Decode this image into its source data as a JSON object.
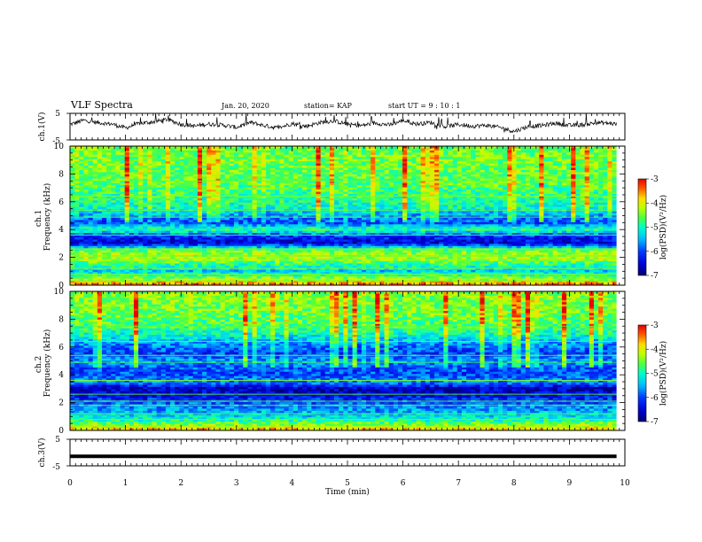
{
  "header": {
    "title": "VLF Spectra",
    "date": "Jan. 20, 2020",
    "station": "station= KAP",
    "start": "start  UT =   9 : 10 : 1"
  },
  "chart_data": [
    {
      "type": "line",
      "panel": "ch1-voltage",
      "ylabel": "ch.1(V)",
      "ylim": [
        -5,
        5
      ],
      "yticks": [
        "5",
        "-5"
      ],
      "x_unit": "min",
      "xlim": [
        0,
        10
      ],
      "data_end_min": 9.85,
      "series": [
        {
          "x": [
            0,
            0.25,
            0.5,
            0.75,
            1.0,
            1.25,
            1.5,
            1.75,
            2.0,
            2.25,
            2.5,
            2.75,
            3.0,
            3.25,
            3.5,
            3.75,
            4.0,
            4.25,
            4.5,
            4.75,
            5.0,
            5.25,
            5.5,
            5.75,
            6.0,
            6.25,
            6.5,
            6.75,
            7.0,
            7.25,
            7.5,
            7.75,
            8.0,
            8.25,
            8.5,
            8.75,
            9.0,
            9.25,
            9.5,
            9.75,
            9.85
          ],
          "y": [
            0.8,
            2.4,
            1.5,
            1.0,
            -0.5,
            1.2,
            1.8,
            2.7,
            0.9,
            0.2,
            1.0,
            0.6,
            -0.3,
            1.6,
            0.4,
            -0.5,
            1.2,
            0.1,
            1.5,
            2.2,
            0.9,
            0.4,
            1.4,
            0.6,
            2.3,
            1.0,
            1.6,
            0.0,
            0.8,
            0.2,
            0.5,
            -0.3,
            -1.8,
            0.0,
            0.4,
            1.3,
            0.4,
            0.7,
            1.5,
            1.2,
            0.9
          ]
        }
      ]
    },
    {
      "type": "heatmap",
      "panel": "ch1-spectrogram",
      "ylabel": "ch.1\nFrequency (kHz)",
      "ylim": [
        0,
        10
      ],
      "yticks": [
        "0",
        "2",
        "4",
        "6",
        "8",
        "10"
      ],
      "xlim": [
        0,
        10
      ],
      "data_end_min": 9.85,
      "frequency_band_levels_kHz": [
        [
          0.0,
          -3.4
        ],
        [
          0.5,
          -4.4
        ],
        [
          1.0,
          -5.4
        ],
        [
          1.5,
          -4.8
        ],
        [
          2.0,
          -4.2
        ],
        [
          2.5,
          -4.5
        ],
        [
          3.0,
          -6.5
        ],
        [
          3.5,
          -6.2
        ],
        [
          4.0,
          -4.8
        ],
        [
          4.5,
          -6.0
        ],
        [
          5.0,
          -5.6
        ],
        [
          5.5,
          -5.1
        ],
        [
          6.0,
          -4.9
        ],
        [
          6.5,
          -4.8
        ],
        [
          7.0,
          -4.7
        ],
        [
          7.5,
          -4.6
        ],
        [
          8.0,
          -4.6
        ],
        [
          8.5,
          -4.5
        ],
        [
          9.0,
          -4.5
        ],
        [
          9.5,
          -4.5
        ],
        [
          10.0,
          -4.5
        ]
      ],
      "colorbar": {
        "label": "log(PSD)(V²/Hz)",
        "range": [
          -7,
          -3
        ],
        "ticks": [
          "-3",
          "-4",
          "-5",
          "-6",
          "-7"
        ],
        "colors": [
          "#000080",
          "#0000ff",
          "#00ffff",
          "#00ff00",
          "#ffff00",
          "#ff0000",
          "#ffffff"
        ]
      }
    },
    {
      "type": "heatmap",
      "panel": "ch2-spectrogram",
      "ylabel": "ch.2\nFrequency (kHz)",
      "ylim": [
        0,
        10
      ],
      "yticks": [
        "0",
        "2",
        "4",
        "6",
        "8",
        "10"
      ],
      "xlim": [
        0,
        10
      ],
      "data_end_min": 9.85,
      "frequency_band_levels_kHz": [
        [
          0.0,
          -3.6
        ],
        [
          0.5,
          -4.6
        ],
        [
          1.0,
          -5.3
        ],
        [
          1.5,
          -5.6
        ],
        [
          2.0,
          -5.9
        ],
        [
          2.5,
          -6.4
        ],
        [
          3.0,
          -6.7
        ],
        [
          3.5,
          -5.6
        ],
        [
          4.0,
          -6.0
        ],
        [
          4.5,
          -5.9
        ],
        [
          5.0,
          -5.6
        ],
        [
          5.5,
          -6.1
        ],
        [
          6.0,
          -5.8
        ],
        [
          6.5,
          -5.4
        ],
        [
          7.0,
          -5.0
        ],
        [
          7.5,
          -4.7
        ],
        [
          8.0,
          -4.6
        ],
        [
          8.5,
          -4.5
        ],
        [
          9.0,
          -4.5
        ],
        [
          9.5,
          -4.4
        ],
        [
          10.0,
          -4.4
        ]
      ],
      "colorbar": {
        "label": "log(PSD)(V²/Hz)",
        "range": [
          -7,
          -3
        ],
        "ticks": [
          "-3",
          "-4",
          "-5",
          "-6",
          "-7"
        ],
        "colors": [
          "#000080",
          "#0000ff",
          "#00ffff",
          "#00ff00",
          "#ffff00",
          "#ff0000",
          "#ffffff"
        ]
      }
    },
    {
      "type": "line",
      "panel": "ch3-voltage",
      "ylabel": "ch.3(V)",
      "ylim": [
        -5,
        5
      ],
      "yticks": [
        "5",
        "-5"
      ],
      "xlim": [
        0,
        10
      ],
      "xlabel": "Time  (min)",
      "xticks": [
        "0",
        "1",
        "2",
        "3",
        "4",
        "5",
        "6",
        "7",
        "8",
        "9",
        "10"
      ],
      "data_end_min": 9.85,
      "series": [
        {
          "x": [
            0,
            9.85
          ],
          "y": [
            -1.4,
            -1.4
          ]
        }
      ]
    }
  ]
}
